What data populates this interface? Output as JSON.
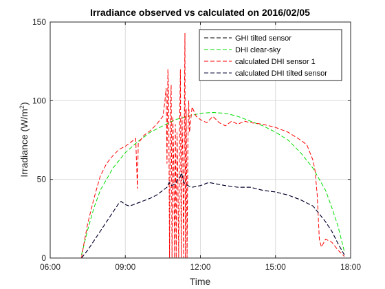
{
  "chart_data": {
    "type": "line",
    "title": "Irradiance observed vs calculated on 2016/02/05",
    "xlabel": "Time",
    "ylabel_main": "Irradiance (W/m",
    "ylabel_sup": "2",
    "ylabel_close": ")",
    "xlim": [
      "06:00",
      "18:00"
    ],
    "ylim": [
      0,
      150
    ],
    "x_ticks": [
      "06:00",
      "09:00",
      "12:00",
      "15:00",
      "18:00"
    ],
    "y_ticks": [
      0,
      50,
      100,
      150
    ],
    "grid": true,
    "legend_position": "top-right",
    "series": [
      {
        "name": "GHI tilted sensor",
        "color": "#000000",
        "dash": "dashed",
        "points": [
          [
            "07:15",
            0
          ],
          [
            "07:30",
            5
          ],
          [
            "07:45",
            11
          ],
          [
            "08:00",
            17
          ],
          [
            "08:15",
            23
          ],
          [
            "08:30",
            29
          ],
          [
            "08:45",
            35
          ],
          [
            "08:50",
            36
          ],
          [
            "09:00",
            34
          ],
          [
            "09:10",
            33
          ],
          [
            "09:20",
            34
          ],
          [
            "09:40",
            36
          ],
          [
            "10:00",
            38
          ],
          [
            "10:15",
            40
          ],
          [
            "10:30",
            43
          ],
          [
            "10:40",
            45
          ],
          [
            "10:45",
            48
          ],
          [
            "10:50",
            46
          ],
          [
            "11:00",
            47
          ],
          [
            "11:05",
            50
          ],
          [
            "11:10",
            51
          ],
          [
            "11:15",
            54
          ],
          [
            "11:20",
            48
          ],
          [
            "11:30",
            46
          ],
          [
            "11:40",
            45
          ],
          [
            "12:00",
            46
          ],
          [
            "12:20",
            48
          ],
          [
            "12:40",
            47
          ],
          [
            "13:00",
            46
          ],
          [
            "13:30",
            45
          ],
          [
            "14:00",
            45
          ],
          [
            "14:30",
            43
          ],
          [
            "15:00",
            42
          ],
          [
            "15:30",
            40
          ],
          [
            "16:00",
            37
          ],
          [
            "16:30",
            33
          ],
          [
            "17:00",
            23
          ],
          [
            "17:15",
            17
          ],
          [
            "17:30",
            9
          ],
          [
            "17:45",
            2
          ]
        ]
      },
      {
        "name": "DHI clear-sky",
        "color": "#00dd00",
        "dash": "dashed",
        "points": [
          [
            "07:15",
            2
          ],
          [
            "07:30",
            18
          ],
          [
            "07:45",
            32
          ],
          [
            "08:00",
            43
          ],
          [
            "08:30",
            57
          ],
          [
            "09:00",
            67
          ],
          [
            "09:30",
            74
          ],
          [
            "10:00",
            80
          ],
          [
            "10:30",
            84
          ],
          [
            "11:00",
            88
          ],
          [
            "11:30",
            90
          ],
          [
            "12:00",
            92
          ],
          [
            "12:30",
            92.5
          ],
          [
            "13:00",
            92
          ],
          [
            "13:30",
            90
          ],
          [
            "14:00",
            87
          ],
          [
            "14:30",
            84
          ],
          [
            "15:00",
            80
          ],
          [
            "15:30",
            75
          ],
          [
            "16:00",
            67
          ],
          [
            "16:30",
            57
          ],
          [
            "17:00",
            43
          ],
          [
            "17:15",
            32
          ],
          [
            "17:30",
            20
          ],
          [
            "17:45",
            4
          ]
        ]
      },
      {
        "name": "calculated DHI sensor 1",
        "color": "#ff0000",
        "dash": "dashed",
        "points": [
          [
            "07:15",
            0
          ],
          [
            "07:20",
            8
          ],
          [
            "07:30",
            22
          ],
          [
            "07:45",
            38
          ],
          [
            "08:00",
            52
          ],
          [
            "08:15",
            60
          ],
          [
            "08:30",
            65
          ],
          [
            "08:45",
            69
          ],
          [
            "09:00",
            71
          ],
          [
            "09:15",
            74
          ],
          [
            "09:25",
            76
          ],
          [
            "09:27",
            60
          ],
          [
            "09:29",
            44
          ],
          [
            "09:31",
            73
          ],
          [
            "09:45",
            78
          ],
          [
            "10:00",
            81
          ],
          [
            "10:15",
            85
          ],
          [
            "10:30",
            90
          ],
          [
            "10:35",
            100
          ],
          [
            "10:38",
            108
          ],
          [
            "10:40",
            60
          ],
          [
            "10:42",
            120
          ],
          [
            "10:44",
            102
          ],
          [
            "10:46",
            0
          ],
          [
            "10:48",
            95
          ],
          [
            "10:50",
            110
          ],
          [
            "10:52",
            0
          ],
          [
            "10:54",
            90
          ],
          [
            "10:56",
            60
          ],
          [
            "10:58",
            0
          ],
          [
            "11:00",
            85
          ],
          [
            "11:02",
            0
          ],
          [
            "11:04",
            80
          ],
          [
            "11:06",
            50
          ],
          [
            "11:08",
            0
          ],
          [
            "11:10",
            83
          ],
          [
            "11:12",
            120
          ],
          [
            "11:14",
            0
          ],
          [
            "11:16",
            90
          ],
          [
            "11:18",
            60
          ],
          [
            "11:20",
            0
          ],
          [
            "11:22",
            105
          ],
          [
            "11:23",
            143
          ],
          [
            "11:24",
            0
          ],
          [
            "11:26",
            95
          ],
          [
            "11:28",
            0
          ],
          [
            "11:30",
            75
          ],
          [
            "11:32",
            100
          ],
          [
            "11:34",
            80
          ],
          [
            "11:40",
            96
          ],
          [
            "11:50",
            90
          ],
          [
            "12:00",
            88
          ],
          [
            "12:15",
            86
          ],
          [
            "12:30",
            90
          ],
          [
            "12:45",
            86
          ],
          [
            "13:00",
            84
          ],
          [
            "13:15",
            87
          ],
          [
            "13:30",
            85
          ],
          [
            "13:45",
            87
          ],
          [
            "14:00",
            86
          ],
          [
            "14:30",
            85
          ],
          [
            "15:00",
            83
          ],
          [
            "15:30",
            80
          ],
          [
            "16:00",
            75
          ],
          [
            "16:15",
            72
          ],
          [
            "16:30",
            62
          ],
          [
            "16:35",
            55
          ],
          [
            "16:40",
            40
          ],
          [
            "16:45",
            12
          ],
          [
            "16:50",
            7
          ],
          [
            "17:00",
            12
          ],
          [
            "17:15",
            10
          ],
          [
            "17:30",
            5
          ],
          [
            "17:45",
            1
          ]
        ]
      },
      {
        "name": "calculated DHI tilted sensor",
        "color": "#000033",
        "dash": "dashed",
        "points": [
          [
            "07:15",
            0
          ],
          [
            "07:30",
            5
          ],
          [
            "07:45",
            11
          ],
          [
            "08:00",
            17
          ],
          [
            "08:15",
            23
          ],
          [
            "08:30",
            29
          ],
          [
            "08:45",
            35
          ],
          [
            "08:50",
            36
          ],
          [
            "09:00",
            34
          ],
          [
            "09:10",
            33
          ],
          [
            "09:20",
            34
          ],
          [
            "09:40",
            36
          ],
          [
            "10:00",
            38
          ],
          [
            "10:15",
            40
          ],
          [
            "10:30",
            43
          ],
          [
            "10:40",
            45
          ],
          [
            "10:45",
            48
          ],
          [
            "10:50",
            46
          ],
          [
            "11:00",
            47
          ],
          [
            "11:05",
            50
          ],
          [
            "11:10",
            51
          ],
          [
            "11:15",
            54
          ],
          [
            "11:20",
            48
          ],
          [
            "11:30",
            46
          ],
          [
            "11:40",
            45
          ],
          [
            "12:00",
            46
          ],
          [
            "12:20",
            48
          ],
          [
            "12:40",
            47
          ],
          [
            "13:00",
            46
          ],
          [
            "13:30",
            45
          ],
          [
            "14:00",
            45
          ],
          [
            "14:30",
            43
          ],
          [
            "15:00",
            42
          ],
          [
            "15:30",
            40
          ],
          [
            "16:00",
            37
          ],
          [
            "16:30",
            33
          ],
          [
            "17:00",
            23
          ],
          [
            "17:15",
            17
          ],
          [
            "17:30",
            9
          ],
          [
            "17:45",
            2
          ]
        ]
      }
    ]
  }
}
